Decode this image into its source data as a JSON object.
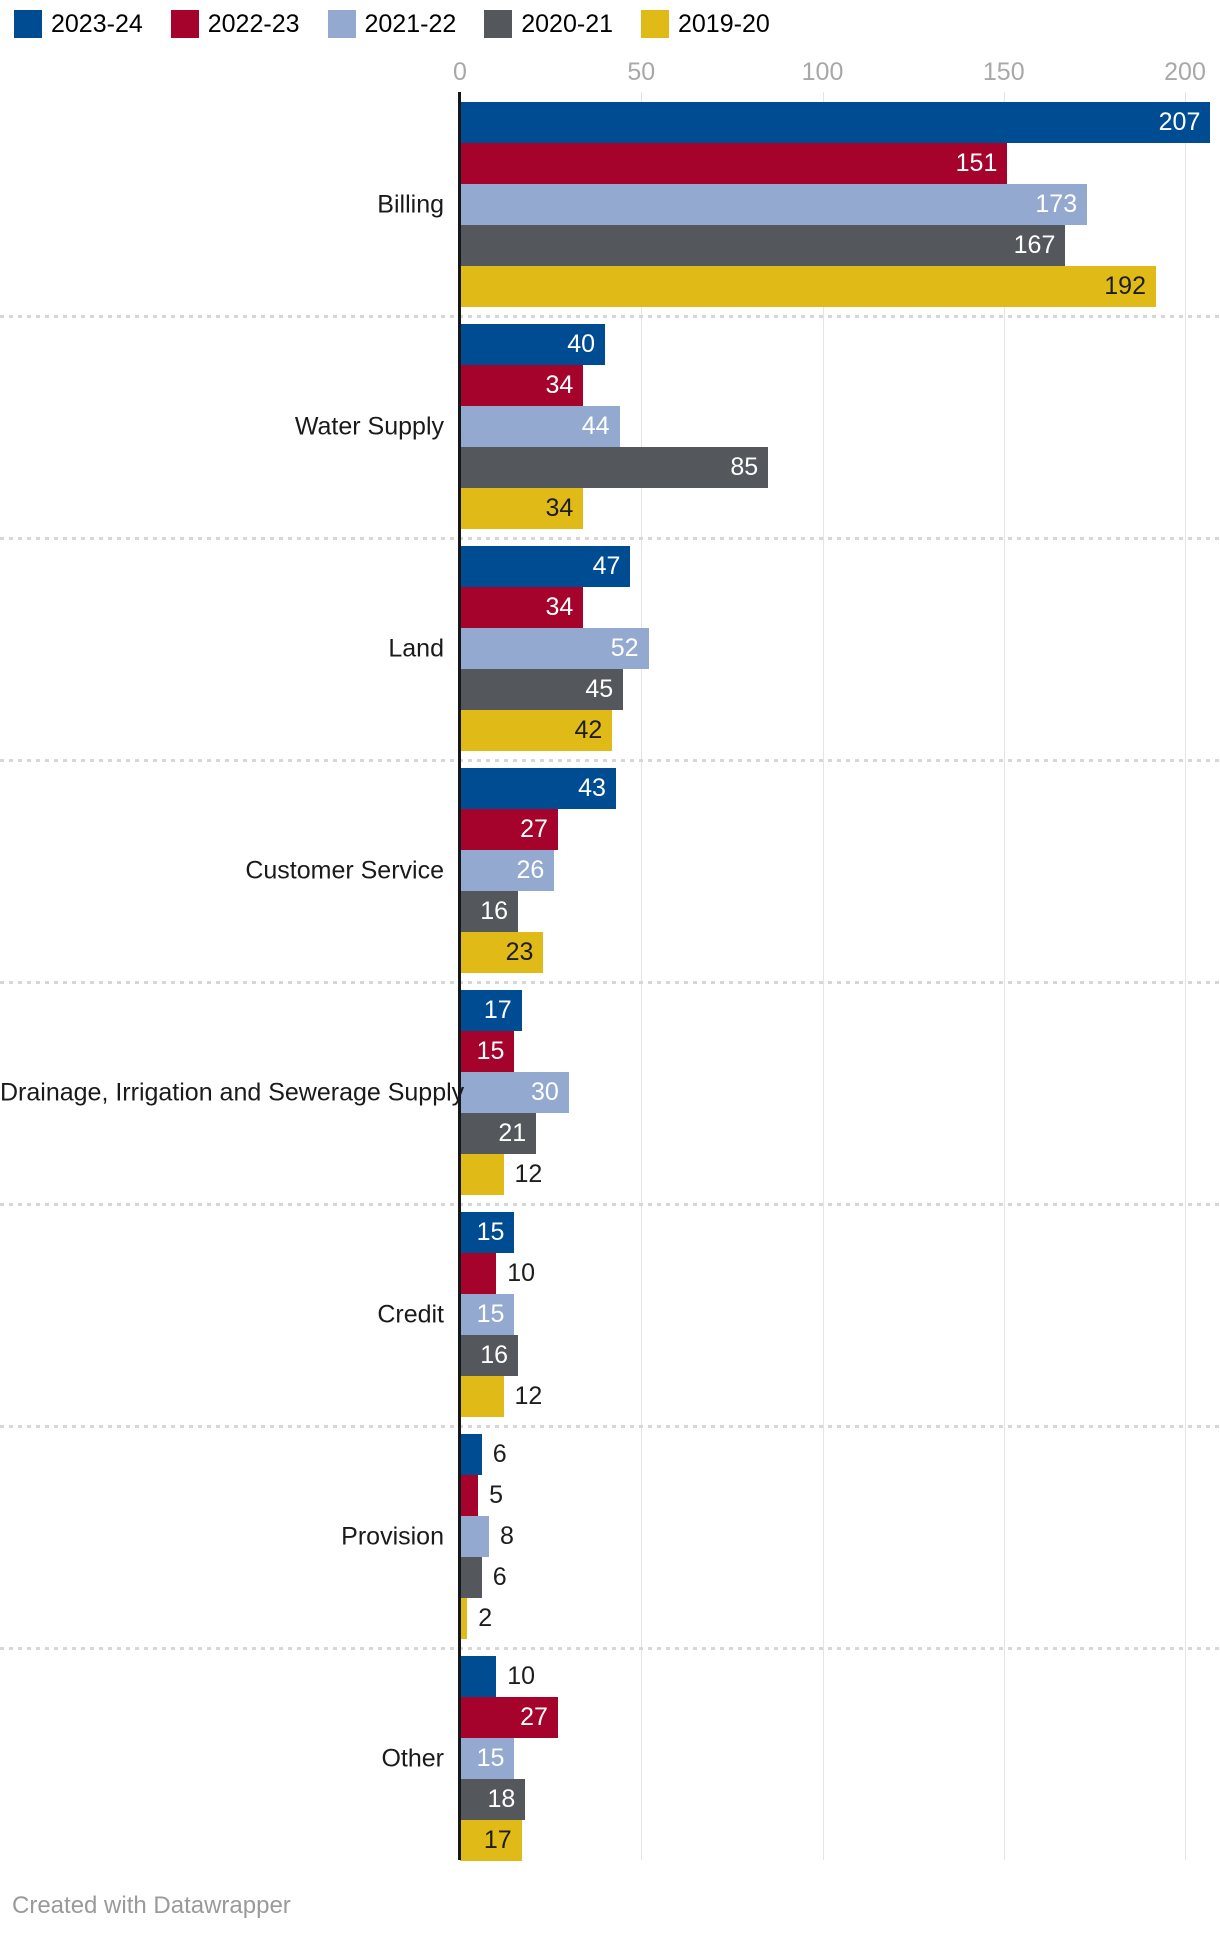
{
  "chart_data": {
    "type": "bar",
    "orientation": "horizontal",
    "categories": [
      "Billing",
      "Water Supply",
      "Land",
      "Customer Service",
      "Drainage, Irrigation and Sewerage Supply",
      "Credit",
      "Provision",
      "Other"
    ],
    "series": [
      {
        "name": "2023-24",
        "color": "#004c93",
        "label_color_inside": "#ffffff",
        "values": [
          207,
          40,
          47,
          43,
          17,
          15,
          6,
          10
        ]
      },
      {
        "name": "2022-23",
        "color": "#a6032c",
        "label_color_inside": "#ffffff",
        "values": [
          151,
          34,
          34,
          27,
          15,
          10,
          5,
          27
        ]
      },
      {
        "name": "2021-22",
        "color": "#94a9cf",
        "label_color_inside": "#ffffff",
        "values": [
          173,
          44,
          52,
          26,
          30,
          15,
          8,
          15
        ]
      },
      {
        "name": "2020-21",
        "color": "#54575c",
        "label_color_inside": "#ffffff",
        "values": [
          167,
          85,
          45,
          16,
          21,
          16,
          6,
          18
        ]
      },
      {
        "name": "2019-20",
        "color": "#e0ba17",
        "label_color_inside": "#1d1d1d",
        "values": [
          192,
          34,
          42,
          23,
          12,
          12,
          2,
          17
        ]
      }
    ],
    "ticks": [
      0,
      50,
      100,
      150,
      200
    ],
    "xlim": [
      0,
      207
    ],
    "grid": true,
    "legend_position": "top",
    "value_labels": true,
    "colors": {
      "gridline": "#e4e4e4",
      "axis_line": "#15171a",
      "tick_text": "#a8a8a8",
      "category_text": "#1a1a1a",
      "outside_label_text": "#1d1d1d",
      "separator": "#d7d7d7"
    }
  },
  "footer": {
    "credit": "Created with Datawrapper"
  }
}
